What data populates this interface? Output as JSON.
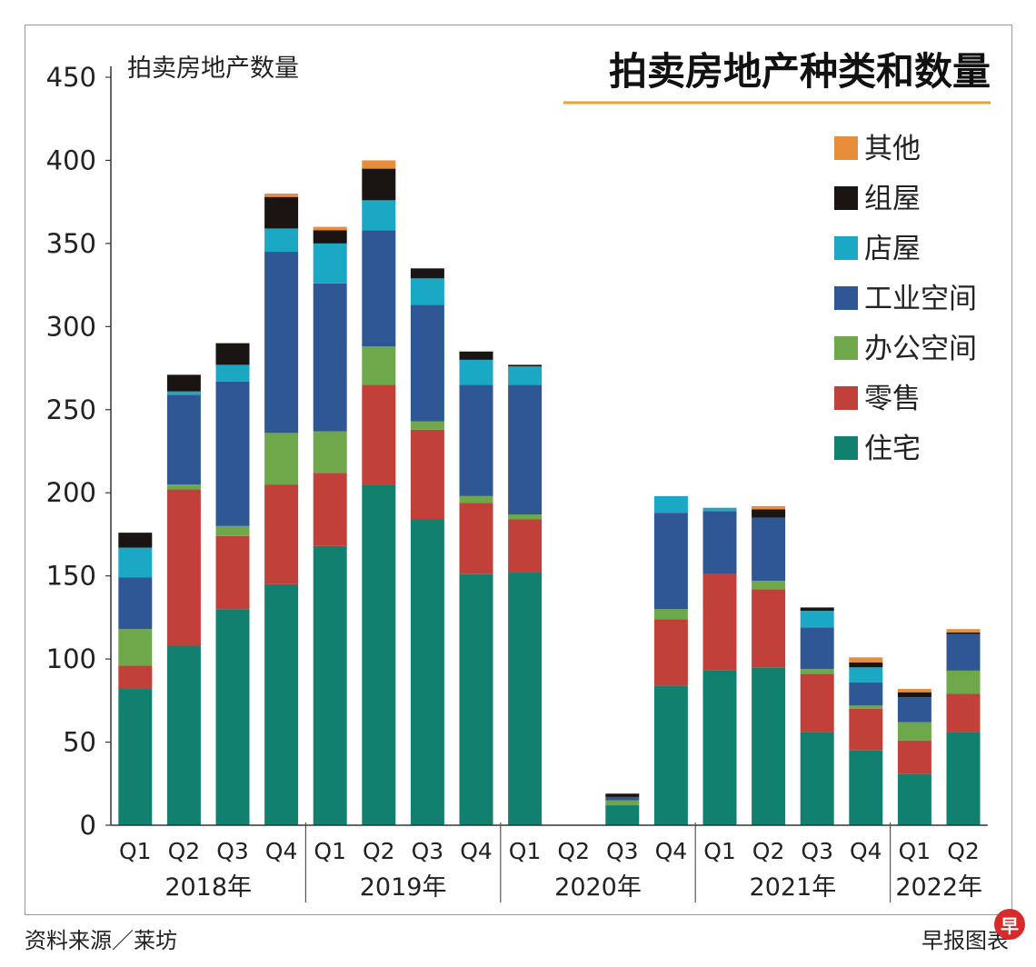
{
  "chart_data": {
    "type": "bar",
    "stacked": true,
    "title": "拍卖房地产种类和数量",
    "ylabel": "拍卖房地产数量",
    "xlabel": "",
    "ylim": [
      0,
      450
    ],
    "yticks": [
      0,
      50,
      100,
      150,
      200,
      250,
      300,
      350,
      400,
      450
    ],
    "grid": false,
    "legend_position": "top-right",
    "categories": [
      "Q1",
      "Q2",
      "Q3",
      "Q4",
      "Q1",
      "Q2",
      "Q3",
      "Q4",
      "Q1",
      "Q2",
      "Q3",
      "Q4",
      "Q1",
      "Q2",
      "Q3",
      "Q4",
      "Q1",
      "Q2"
    ],
    "year_groups": [
      {
        "label": "2018年",
        "count": 4
      },
      {
        "label": "2019年",
        "count": 4
      },
      {
        "label": "2020年",
        "count": 4
      },
      {
        "label": "2021年",
        "count": 4
      },
      {
        "label": "2022年",
        "count": 2
      }
    ],
    "series": [
      {
        "name": "住宅",
        "color": "#12806f",
        "values": [
          82,
          108,
          130,
          145,
          168,
          205,
          184,
          151,
          152,
          0,
          12,
          84,
          93,
          95,
          56,
          45,
          31,
          56
        ]
      },
      {
        "name": "零售",
        "color": "#c1403a",
        "values": [
          14,
          94,
          44,
          60,
          44,
          60,
          54,
          43,
          32,
          0,
          0,
          40,
          58,
          47,
          35,
          25,
          20,
          23
        ]
      },
      {
        "name": "办公空间",
        "color": "#6fa84a",
        "values": [
          22,
          3,
          6,
          31,
          25,
          23,
          5,
          4,
          3,
          0,
          3,
          6,
          0,
          5,
          3,
          2,
          11,
          14
        ]
      },
      {
        "name": "工业空间",
        "color": "#2f5794",
        "values": [
          31,
          54,
          87,
          109,
          89,
          70,
          70,
          67,
          78,
          0,
          2,
          58,
          38,
          38,
          25,
          14,
          15,
          22
        ]
      },
      {
        "name": "店屋",
        "color": "#1aa8c4",
        "values": [
          18,
          2,
          10,
          14,
          24,
          18,
          16,
          15,
          11,
          0,
          0,
          10,
          2,
          0,
          10,
          9,
          0,
          0
        ]
      },
      {
        "name": "组屋",
        "color": "#1a1512",
        "values": [
          9,
          10,
          13,
          19,
          8,
          19,
          6,
          5,
          1,
          0,
          2,
          0,
          0,
          5,
          2,
          3,
          3,
          1
        ]
      },
      {
        "name": "其他",
        "color": "#e88d3a",
        "values": [
          0,
          0,
          0,
          2,
          2,
          5,
          0,
          0,
          0,
          0,
          0,
          0,
          0,
          2,
          0,
          3,
          2,
          2
        ]
      }
    ]
  },
  "footer": {
    "source": "资料来源／莱坊",
    "credit": "早报图表",
    "logo_glyph": "早"
  }
}
